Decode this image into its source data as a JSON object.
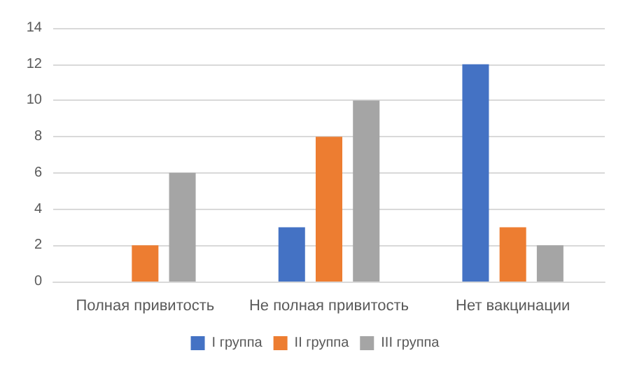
{
  "chart_data": {
    "type": "bar",
    "categories": [
      "Полная привитость",
      "Не полная привитость",
      "Нет вакцинации"
    ],
    "series": [
      {
        "name": "I группа",
        "color": "#4472c4",
        "values": [
          0,
          3,
          12
        ]
      },
      {
        "name": "II группа",
        "color": "#ed7d31",
        "values": [
          2,
          8,
          3
        ]
      },
      {
        "name": "III группа",
        "color": "#a5a5a5",
        "values": [
          6,
          10,
          2
        ]
      }
    ],
    "ylim": [
      0,
      14
    ],
    "yticks": [
      0,
      2,
      4,
      6,
      8,
      10,
      12,
      14
    ],
    "grid": "y",
    "legend": "bottom"
  }
}
